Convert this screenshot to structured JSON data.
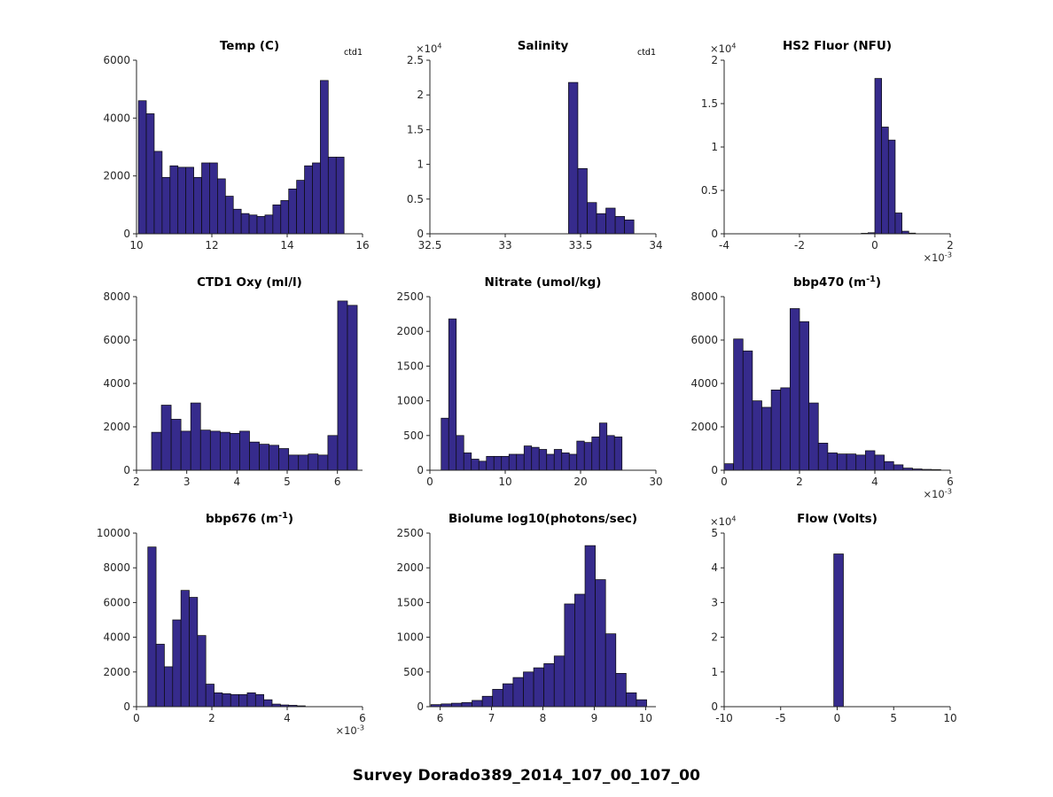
{
  "figure": {
    "title": "Survey Dorado389_2014_107_00_107_00",
    "background": "#ffffff",
    "bar_fill": "#362b8c",
    "bar_stroke": "#0a0a0a",
    "axis_color": "#262626",
    "text_color": "#262626",
    "title_color": "#000000"
  },
  "chart_data": [
    {
      "type": "bar",
      "name": "temp",
      "title": "Temp (C)",
      "annotation": "ctd1",
      "xlabel": "",
      "ylabel": "",
      "grid": false,
      "legend": null,
      "xlim": [
        10,
        16
      ],
      "ylim": [
        0,
        6000
      ],
      "xticks": [
        10,
        12,
        14,
        16
      ],
      "xtick_labels": [
        "10",
        "12",
        "14",
        "16"
      ],
      "yticks": [
        0,
        2000,
        4000,
        6000
      ],
      "ytick_labels": [
        "0",
        "2000",
        "4000",
        "6000"
      ],
      "bin_start": 10.05,
      "bin_width": 0.21,
      "values": [
        4600,
        4150,
        2850,
        1950,
        2350,
        2300,
        2300,
        1950,
        2450,
        2450,
        1900,
        1300,
        850,
        700,
        650,
        600,
        650,
        1000,
        1150,
        1550,
        1850,
        2350,
        2450,
        5300,
        2650,
        2650
      ]
    },
    {
      "type": "bar",
      "name": "salinity",
      "title": "Salinity",
      "annotation": "ctd1",
      "xlabel": "",
      "ylabel": "",
      "grid": false,
      "legend": null,
      "y_exponent": "×10^{4}",
      "xlim": [
        32.5,
        34
      ],
      "ylim": [
        0,
        25000
      ],
      "xticks": [
        32.5,
        33,
        33.5,
        34
      ],
      "xtick_labels": [
        "32.5",
        "33",
        "33.5",
        "34"
      ],
      "yticks": [
        0,
        5000,
        10000,
        15000,
        20000,
        25000
      ],
      "ytick_labels": [
        "0",
        "0.5",
        "1",
        "1.5",
        "2",
        "2.5"
      ],
      "bin_start": 33.42,
      "bin_width": 0.062,
      "values": [
        21800,
        9400,
        4500,
        2900,
        3700,
        2500,
        2000
      ]
    },
    {
      "type": "bar",
      "name": "hs2-fluor",
      "title": "HS2 Fluor (NFU)",
      "xlabel": "",
      "ylabel": "",
      "grid": false,
      "legend": null,
      "y_exponent": "×10^{4}",
      "x_exponent": "×10^{-3}",
      "xlim": [
        -0.004,
        0.002
      ],
      "ylim": [
        0,
        20000
      ],
      "xticks": [
        -0.004,
        -0.002,
        0,
        0.002
      ],
      "xtick_labels": [
        "-4",
        "-2",
        "0",
        "2"
      ],
      "yticks": [
        0,
        5000,
        10000,
        15000,
        20000
      ],
      "ytick_labels": [
        "0",
        "0.5",
        "1",
        "1.5",
        "2"
      ],
      "bin_start": -0.00036,
      "bin_width": 0.00018,
      "values": [
        60,
        120,
        17900,
        12300,
        10800,
        2400,
        300,
        80
      ]
    },
    {
      "type": "bar",
      "name": "ctd1-oxy",
      "title": "CTD1 Oxy (ml/l)",
      "xlabel": "",
      "ylabel": "",
      "grid": false,
      "legend": null,
      "xlim": [
        2,
        6.5
      ],
      "ylim": [
        0,
        8000
      ],
      "xticks": [
        2,
        3,
        4,
        5,
        6
      ],
      "xtick_labels": [
        "2",
        "3",
        "4",
        "5",
        "6"
      ],
      "yticks": [
        0,
        2000,
        4000,
        6000,
        8000
      ],
      "ytick_labels": [
        "0",
        "2000",
        "4000",
        "6000",
        "8000"
      ],
      "bin_start": 2.3,
      "bin_width": 0.195,
      "values": [
        1750,
        3000,
        2350,
        1800,
        3100,
        1850,
        1800,
        1750,
        1700,
        1800,
        1300,
        1200,
        1150,
        1000,
        700,
        700,
        750,
        700,
        1600,
        7800,
        7600
      ]
    },
    {
      "type": "bar",
      "name": "nitrate",
      "title": "Nitrate (umol/kg)",
      "xlabel": "",
      "ylabel": "",
      "grid": false,
      "legend": null,
      "xlim": [
        0,
        30
      ],
      "ylim": [
        0,
        2500
      ],
      "xticks": [
        0,
        10,
        20,
        30
      ],
      "xtick_labels": [
        "0",
        "10",
        "20",
        "30"
      ],
      "yticks": [
        0,
        500,
        1000,
        1500,
        2000,
        2500
      ],
      "ytick_labels": [
        "0",
        "500",
        "1000",
        "1500",
        "2000",
        "2500"
      ],
      "bin_start": 1.5,
      "bin_width": 1,
      "values": [
        750,
        2180,
        500,
        250,
        160,
        130,
        200,
        200,
        200,
        230,
        230,
        350,
        330,
        300,
        230,
        300,
        250,
        230,
        420,
        400,
        480,
        680,
        500,
        480
      ]
    },
    {
      "type": "bar",
      "name": "bbp470",
      "title": "bbp470 (m^{-1})",
      "xlabel": "",
      "ylabel": "",
      "grid": false,
      "legend": null,
      "x_exponent": "×10^{-3}",
      "xlim": [
        0,
        0.006
      ],
      "ylim": [
        0,
        8000
      ],
      "xticks": [
        0,
        0.002,
        0.004,
        0.006
      ],
      "xtick_labels": [
        "0",
        "2",
        "4",
        "6"
      ],
      "yticks": [
        0,
        2000,
        4000,
        6000,
        8000
      ],
      "ytick_labels": [
        "0",
        "2000",
        "4000",
        "6000",
        "8000"
      ],
      "bin_start": 0,
      "bin_width": 0.00025,
      "values": [
        300,
        6050,
        5500,
        3200,
        2900,
        3700,
        3800,
        7450,
        6850,
        3100,
        1250,
        800,
        750,
        750,
        700,
        900,
        700,
        400,
        250,
        100,
        60,
        40,
        30
      ]
    },
    {
      "type": "bar",
      "name": "bbp676",
      "title": "bbp676 (m^{-1})",
      "xlabel": "",
      "ylabel": "",
      "grid": false,
      "legend": null,
      "x_exponent": "×10^{-3}",
      "xlim": [
        0,
        0.006
      ],
      "ylim": [
        0,
        10000
      ],
      "xticks": [
        0,
        0.002,
        0.004,
        0.006
      ],
      "xtick_labels": [
        "0",
        "2",
        "4",
        "6"
      ],
      "yticks": [
        0,
        2000,
        4000,
        6000,
        8000,
        10000
      ],
      "ytick_labels": [
        "0",
        "2000",
        "4000",
        "6000",
        "8000",
        "10000"
      ],
      "bin_start": 0.0003,
      "bin_width": 0.00022,
      "values": [
        9200,
        3600,
        2300,
        5000,
        6700,
        6300,
        4100,
        1300,
        800,
        750,
        700,
        700,
        800,
        700,
        400,
        150,
        100,
        80,
        50
      ]
    },
    {
      "type": "bar",
      "name": "biolume",
      "title": "Biolume log10(photons/sec)",
      "xlabel": "",
      "ylabel": "",
      "grid": false,
      "legend": null,
      "xlim": [
        5.8,
        10.2
      ],
      "ylim": [
        0,
        2500
      ],
      "xticks": [
        6,
        7,
        8,
        9,
        10
      ],
      "xtick_labels": [
        "6",
        "7",
        "8",
        "9",
        "10"
      ],
      "yticks": [
        0,
        500,
        1000,
        1500,
        2000,
        2500
      ],
      "ytick_labels": [
        "0",
        "500",
        "1000",
        "1500",
        "2000",
        "2500"
      ],
      "bin_start": 5.82,
      "bin_width": 0.2,
      "values": [
        30,
        40,
        50,
        60,
        90,
        150,
        250,
        330,
        420,
        500,
        560,
        620,
        730,
        1480,
        1620,
        2320,
        1830,
        1050,
        480,
        200,
        100
      ]
    },
    {
      "type": "bar",
      "name": "flow",
      "title": "Flow (Volts)",
      "xlabel": "",
      "ylabel": "",
      "grid": false,
      "legend": null,
      "y_exponent": "×10^{4}",
      "xlim": [
        -10,
        10
      ],
      "ylim": [
        0,
        50000
      ],
      "xticks": [
        -10,
        -5,
        0,
        5,
        10
      ],
      "xtick_labels": [
        "-10",
        "-5",
        "0",
        "5",
        "10"
      ],
      "yticks": [
        0,
        10000,
        20000,
        30000,
        40000,
        50000
      ],
      "ytick_labels": [
        "0",
        "1",
        "2",
        "3",
        "4",
        "5"
      ],
      "bin_start": -0.3,
      "bin_width": 0.85,
      "values": [
        44000
      ]
    }
  ]
}
